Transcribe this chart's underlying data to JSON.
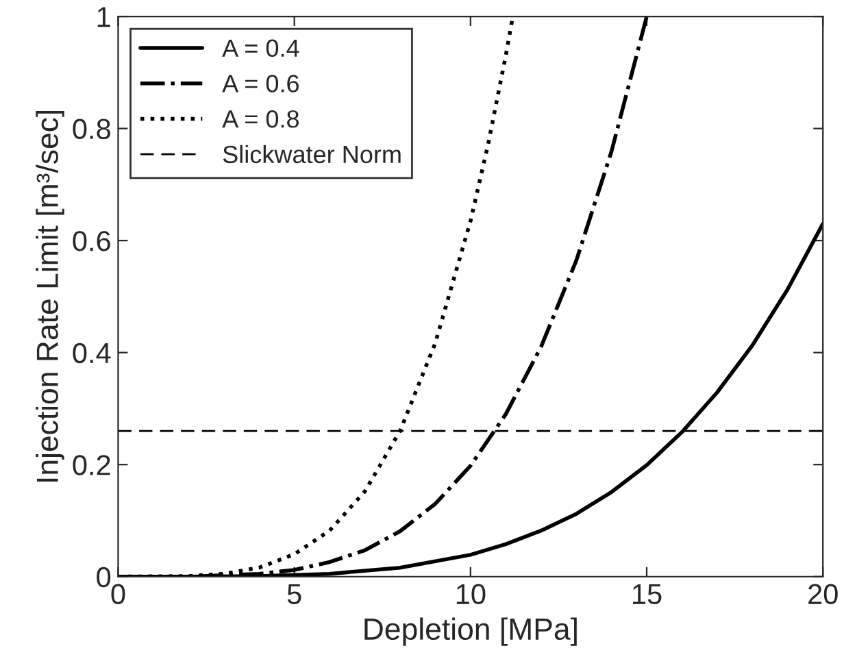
{
  "chart_data": {
    "type": "line",
    "xlabel": "Depletion [MPa]",
    "ylabel": "Injection Rate Limit [m³/sec]",
    "xlim": [
      0,
      20
    ],
    "ylim": [
      0,
      1
    ],
    "xticks": [
      0,
      5,
      10,
      15,
      20
    ],
    "yticks": [
      0,
      0.2,
      0.4,
      0.6,
      0.8,
      1
    ],
    "grid": false,
    "legend": "top left",
    "marker": "none",
    "series": [
      {
        "name": "A = 0.4",
        "color": "#000000",
        "line_style": "solid",
        "x": [
          0,
          2,
          4,
          6,
          8,
          10,
          11,
          12,
          13,
          14,
          15,
          16,
          17,
          18,
          19,
          20
        ],
        "values": [
          0,
          0,
          0.001,
          0.005,
          0.016,
          0.039,
          0.058,
          0.082,
          0.112,
          0.151,
          0.199,
          0.258,
          0.329,
          0.413,
          0.513,
          0.63
        ]
      },
      {
        "name": "A = 0.6",
        "color": "#000000",
        "line_style": "dashdot",
        "x": [
          0,
          2,
          4,
          5,
          6,
          7,
          8,
          9,
          10,
          11,
          12,
          13,
          14,
          15
        ],
        "values": [
          0,
          0,
          0.005,
          0.012,
          0.026,
          0.047,
          0.081,
          0.13,
          0.198,
          0.29,
          0.41,
          0.564,
          0.759,
          1
        ]
      },
      {
        "name": "A = 0.8",
        "color": "#000000",
        "line_style": "dotted",
        "x": [
          0,
          2,
          3,
          4,
          5,
          6,
          7,
          8,
          9,
          10,
          10.5,
          11,
          11.2
        ],
        "values": [
          0,
          0.001,
          0.005,
          0.016,
          0.04,
          0.082,
          0.152,
          0.26,
          0.417,
          0.635,
          0.772,
          0.93,
          1
        ]
      }
    ],
    "ref_lines": [
      {
        "axis": "y",
        "value": 0.26,
        "label": "Slickwater Norm",
        "color": "#000000",
        "line_style": "dashed"
      }
    ]
  }
}
